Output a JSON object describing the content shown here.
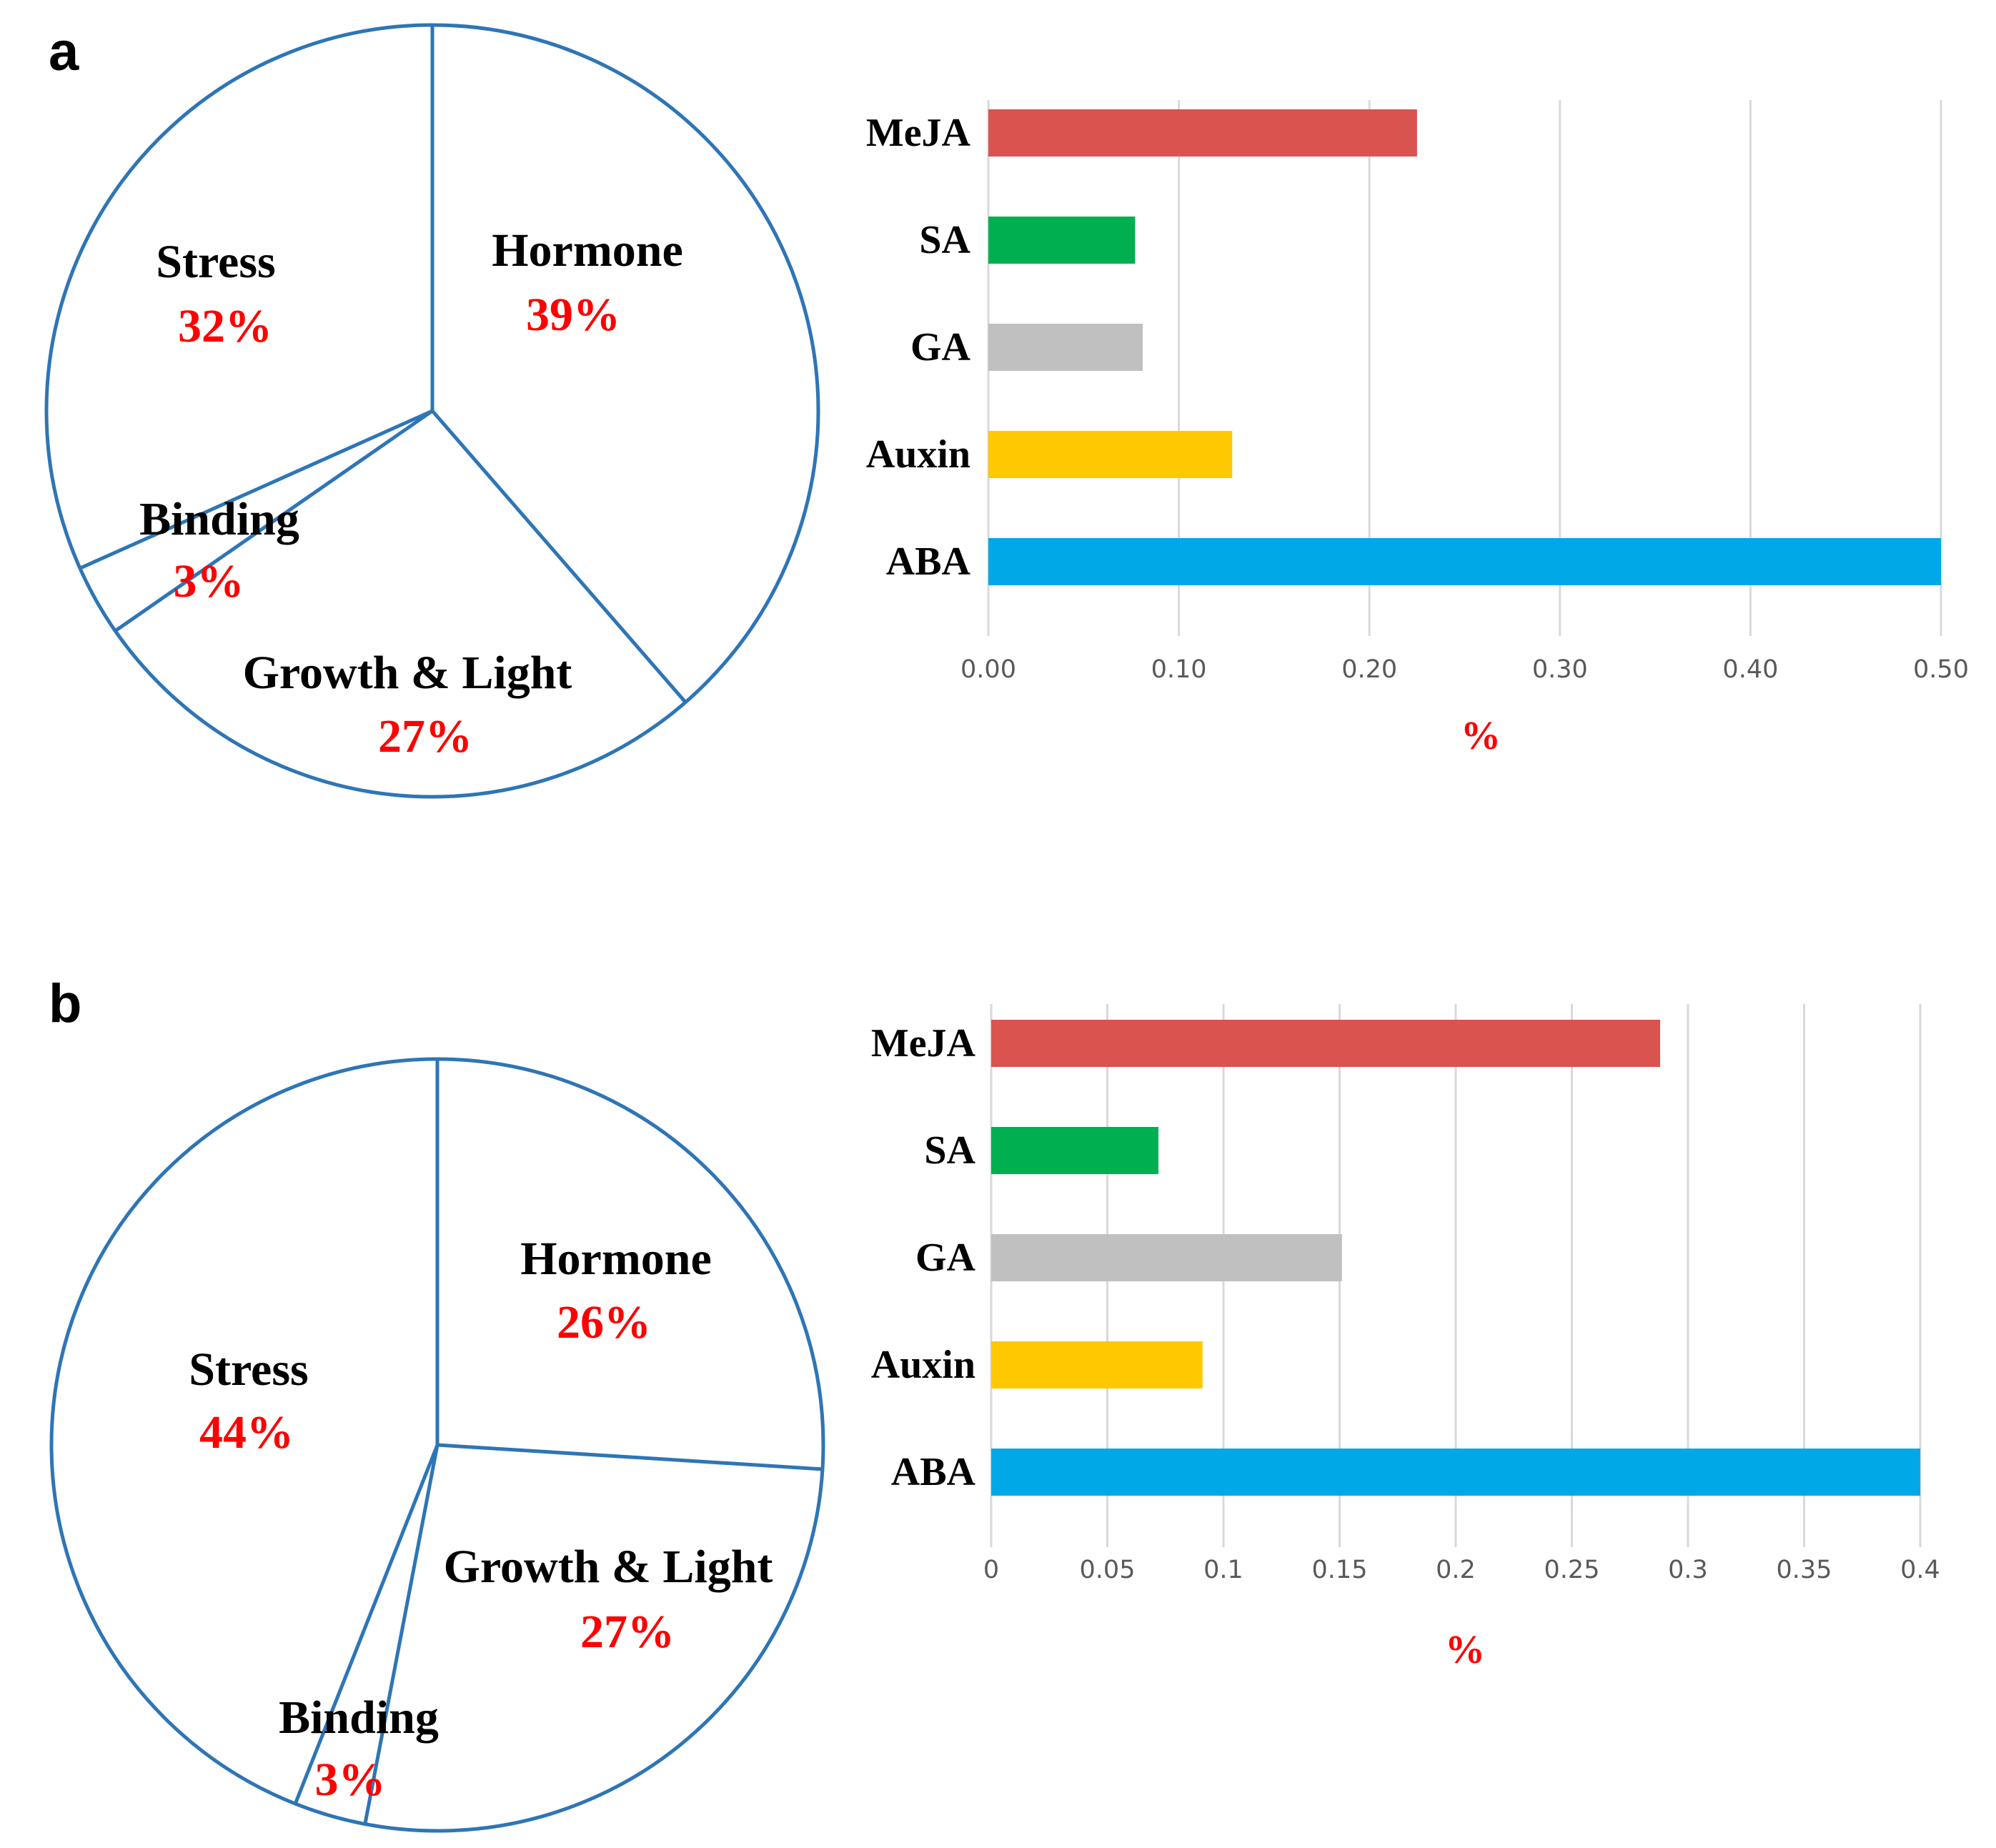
{
  "colors": {
    "pie_line": "#2e75b6",
    "pct_text": "#ff0000",
    "axis_title": "#ff0000"
  },
  "panels": [
    {
      "letter": "a",
      "pie": {
        "slices": [
          {
            "name": "Hormone",
            "pct_label": "39%",
            "value": 39
          },
          {
            "name": "Growth & Light",
            "pct_label": "27%",
            "value": 27
          },
          {
            "name": "Binding",
            "pct_label": "3%",
            "value": 3
          },
          {
            "name": "Stress",
            "pct_label": "32%",
            "value": 32
          }
        ]
      },
      "bar": {
        "ticks": [
          "0.00",
          "0.10",
          "0.20",
          "0.30",
          "0.40",
          "0.50"
        ],
        "xlabel": "%"
      }
    },
    {
      "letter": "b",
      "pie": {
        "slices": [
          {
            "name": "Hormone",
            "pct_label": "26%",
            "value": 26
          },
          {
            "name": "Growth & Light",
            "pct_label": "27%",
            "value": 27
          },
          {
            "name": "Binding",
            "pct_label": "3%",
            "value": 3
          },
          {
            "name": "Stress",
            "pct_label": "44%",
            "value": 44
          }
        ]
      },
      "bar": {
        "ticks": [
          "0",
          "0.05",
          "0.1",
          "0.15",
          "0.2",
          "0.25",
          "0.3",
          "0.35",
          "0.4"
        ],
        "xlabel": "%"
      }
    }
  ],
  "chart_data": [
    {
      "type": "pie",
      "panel": "a",
      "labels": [
        "Hormone",
        "Growth & Light",
        "Binding",
        "Stress"
      ],
      "values": [
        39,
        27,
        3,
        32
      ]
    },
    {
      "type": "bar",
      "panel": "a",
      "orientation": "horizontal",
      "categories": [
        "MeJA",
        "SA",
        "GA",
        "Auxin",
        "ABA"
      ],
      "values": [
        0.225,
        0.077,
        0.081,
        0.128,
        0.5
      ],
      "colors": [
        "#d9534f",
        "#00b050",
        "#c0c0c0",
        "#ffc800",
        "#00a8e8"
      ],
      "xlabel": "%",
      "xlim": [
        0,
        0.5
      ],
      "grid": true
    },
    {
      "type": "pie",
      "panel": "b",
      "labels": [
        "Hormone",
        "Growth & Light",
        "Binding",
        "Stress"
      ],
      "values": [
        26,
        27,
        3,
        44
      ]
    },
    {
      "type": "bar",
      "panel": "b",
      "orientation": "horizontal",
      "categories": [
        "MeJA",
        "SA",
        "GA",
        "Auxin",
        "ABA"
      ],
      "values": [
        0.288,
        0.072,
        0.151,
        0.091,
        0.4
      ],
      "colors": [
        "#d9534f",
        "#00b050",
        "#c0c0c0",
        "#ffc800",
        "#00a8e8"
      ],
      "xlabel": "%",
      "xlim": [
        0,
        0.4
      ],
      "grid": true
    }
  ]
}
